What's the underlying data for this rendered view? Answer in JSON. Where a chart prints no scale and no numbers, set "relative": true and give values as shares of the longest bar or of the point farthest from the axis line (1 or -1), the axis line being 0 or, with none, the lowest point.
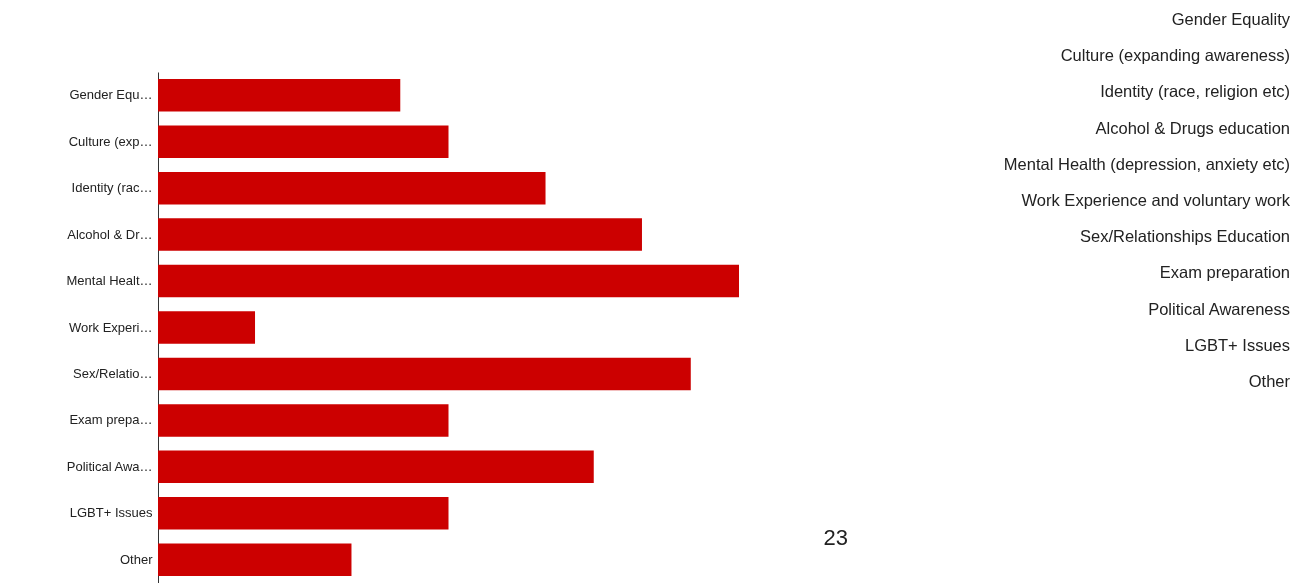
{
  "chart_data": {
    "type": "bar",
    "orientation": "horizontal",
    "relative": true,
    "categories": [
      "Gender Equ…",
      "Culture (exp…",
      "Identity (rac…",
      "Alcohol & Dr…",
      "Mental Healt…",
      "Work Experi…",
      "Sex/Relatio…",
      "Exam prepa…",
      "Political Awa…",
      "LGBT+ Issues",
      "Other"
    ],
    "values": [
      0.417,
      0.5,
      0.667,
      0.833,
      1,
      0.167,
      0.917,
      0.5,
      0.75,
      0.5,
      0.333
    ],
    "color": "#cc0000",
    "annotations": [
      "Gender Equality",
      "Culture (expanding awareness)",
      "Identity (race, religion etc)",
      "Alcohol & Drugs education",
      "Mental Health (depression, anxiety etc)",
      "Work Experience and voluntary work",
      "Sex/Relationships Education",
      "Exam preparation",
      "Political Awareness",
      "LGBT+ Issues",
      "Other",
      "23"
    ]
  }
}
